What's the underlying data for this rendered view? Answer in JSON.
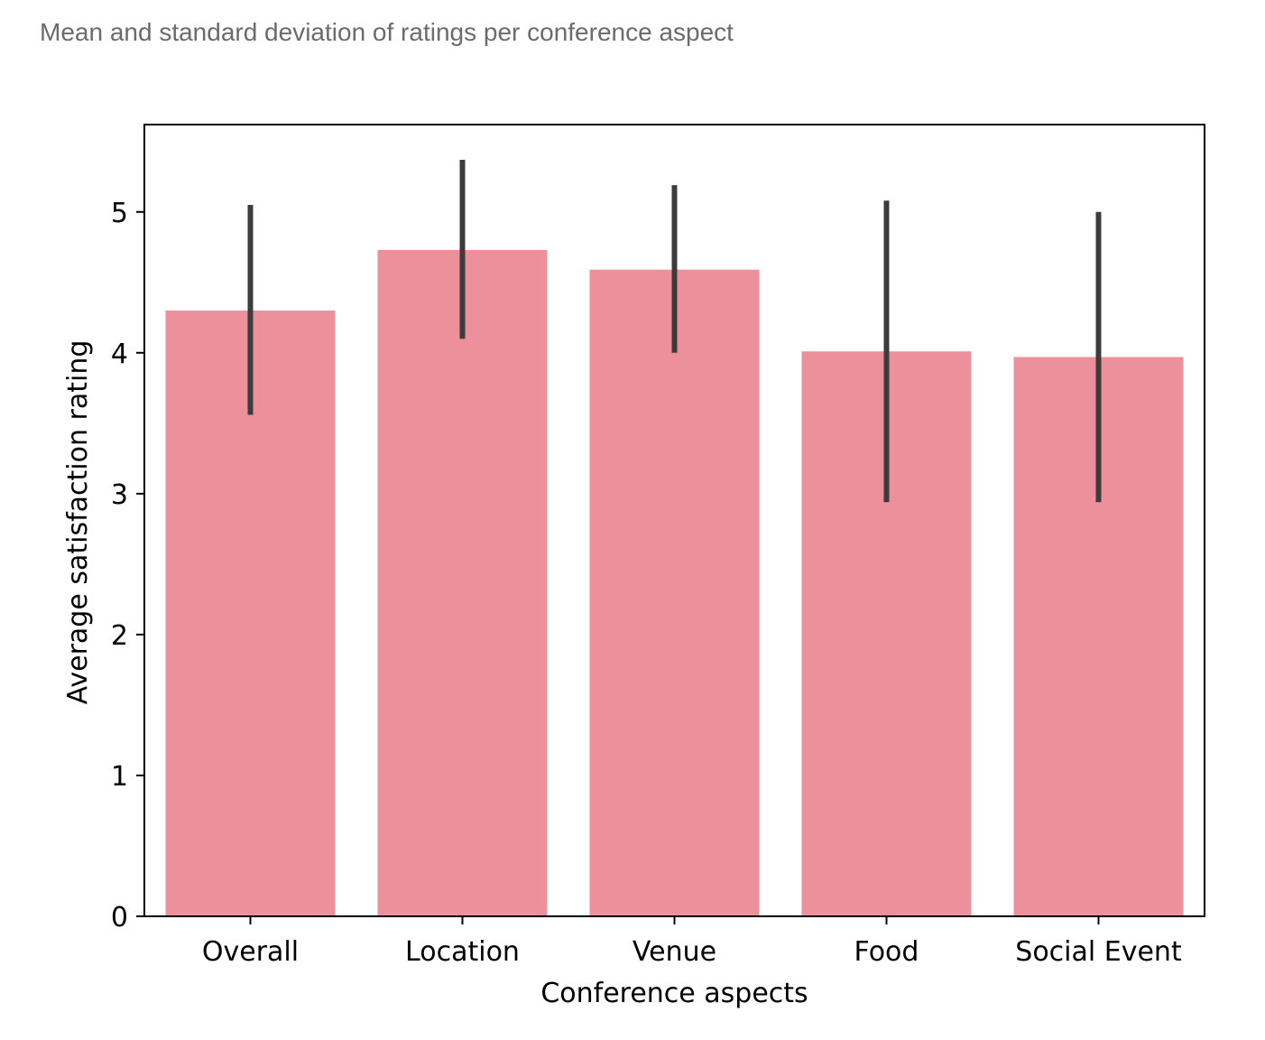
{
  "caption": "Mean and standard deviation of ratings per conference aspect",
  "chart_data": {
    "type": "bar",
    "categories": [
      "Overall",
      "Location",
      "Venue",
      "Food",
      "Social Event"
    ],
    "values": [
      4.3,
      4.73,
      4.59,
      4.01,
      3.97
    ],
    "error_bars": {
      "kind": "standard deviation",
      "lower": [
        3.56,
        4.1,
        4.0,
        2.94,
        2.94
      ],
      "upper": [
        5.05,
        5.37,
        5.19,
        5.08,
        5.0
      ]
    },
    "title": "",
    "xlabel": "Conference aspects",
    "ylabel": "Average satisfaction rating",
    "ylim": [
      0,
      5.62
    ],
    "yticks": [
      0,
      1,
      2,
      3,
      4,
      5
    ],
    "grid": false,
    "colors": {
      "bar": "#ec909c",
      "error_bar": "#3c3c3c",
      "axis": "#000000"
    }
  }
}
